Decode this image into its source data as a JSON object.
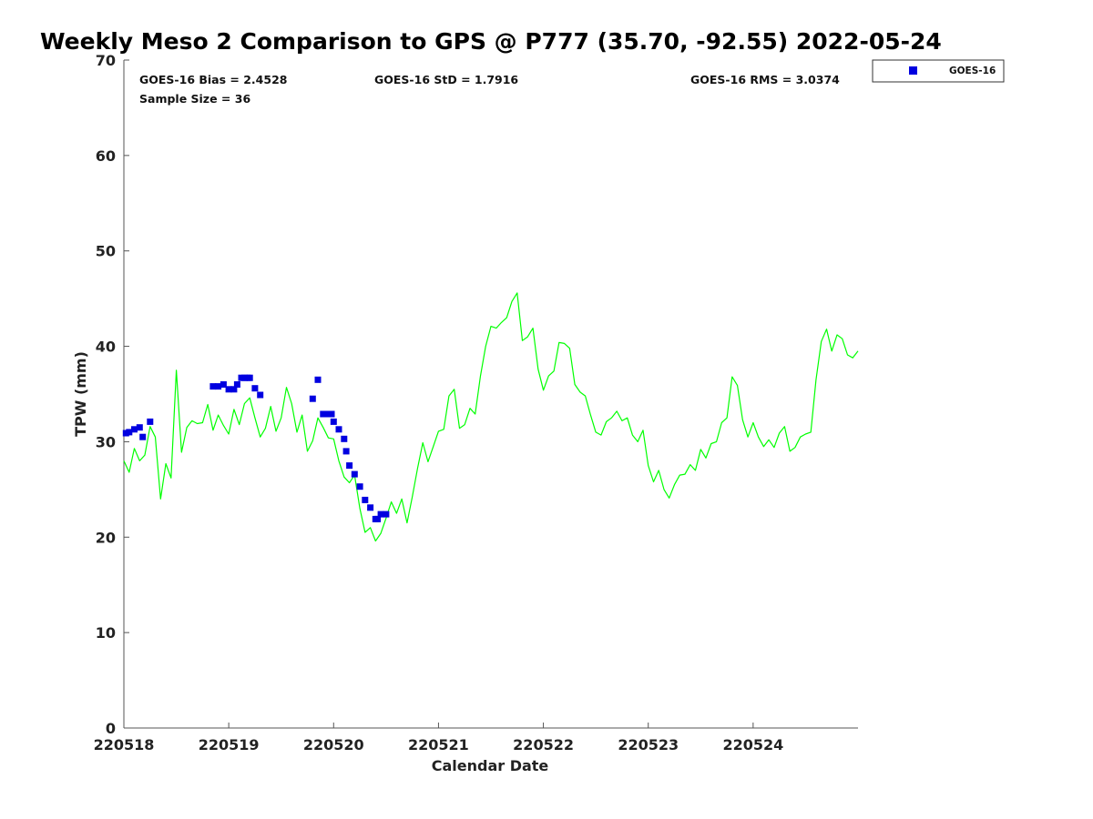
{
  "chart_data": {
    "type": "scatter",
    "title": "Weekly Meso 2 Comparison to GPS @ P777 (35.70, -92.55) 2022-05-24",
    "xlabel": "Calendar Date",
    "ylabel": "TPW (mm)",
    "xlim": [
      220518,
      220525
    ],
    "ylim": [
      0,
      70
    ],
    "x_ticks": [
      220518,
      220519,
      220520,
      220521,
      220522,
      220523,
      220524
    ],
    "x_tick_labels": [
      "220518",
      "220519",
      "220520",
      "220521",
      "220522",
      "220523",
      "220524"
    ],
    "y_ticks": [
      0,
      10,
      20,
      30,
      40,
      50,
      60,
      70
    ],
    "y_tick_labels": [
      "0",
      "10",
      "20",
      "30",
      "40",
      "50",
      "60",
      "70"
    ],
    "grid": false,
    "legend_position": "top-right",
    "stats": {
      "bias": "GOES-16 Bias = 2.4528",
      "std": "GOES-16 StD = 1.7916",
      "rms": "GOES-16 RMS = 3.0374",
      "sample": "Sample Size = 36"
    },
    "series": [
      {
        "name": "GOES-16",
        "kind": "scatter",
        "color": "#0000e0",
        "x": [
          220518.02,
          220518.05,
          220518.1,
          220518.15,
          220518.18,
          220518.25,
          220518.85,
          220518.9,
          220518.95,
          220519.0,
          220519.05,
          220519.08,
          220519.12,
          220519.15,
          220519.18,
          220519.2,
          220519.25,
          220519.3,
          220519.8,
          220519.85,
          220519.9,
          220519.95,
          220519.98,
          220520.0,
          220520.05,
          220520.1,
          220520.12,
          220520.15,
          220520.2,
          220520.25,
          220520.3,
          220520.35,
          220520.4,
          220520.42,
          220520.45,
          220520.5
        ],
        "y": [
          30.9,
          31.0,
          31.3,
          31.5,
          30.5,
          32.1,
          35.8,
          35.8,
          36.0,
          35.5,
          35.5,
          36.0,
          36.7,
          36.7,
          36.7,
          36.7,
          35.6,
          34.9,
          34.5,
          36.5,
          32.9,
          32.9,
          32.9,
          32.1,
          31.3,
          30.3,
          29.0,
          27.5,
          26.6,
          25.3,
          23.9,
          23.1,
          21.9,
          21.9,
          22.4,
          22.4
        ]
      },
      {
        "kind": "line",
        "color": "#00ff00",
        "x": [
          220518.0,
          220518.05,
          220518.1,
          220518.15,
          220518.2,
          220518.25,
          220518.3,
          220518.35,
          220518.4,
          220518.45,
          220518.5,
          220518.55,
          220518.6,
          220518.65,
          220518.7,
          220518.75,
          220518.8,
          220518.85,
          220518.9,
          220518.95,
          220519.0,
          220519.05,
          220519.1,
          220519.15,
          220519.2,
          220519.25,
          220519.3,
          220519.35,
          220519.4,
          220519.45,
          220519.5,
          220519.55,
          220519.6,
          220519.65,
          220519.7,
          220519.75,
          220519.8,
          220519.85,
          220519.9,
          220519.95,
          220520.0,
          220520.05,
          220520.1,
          220520.15,
          220520.2,
          220520.25,
          220520.3,
          220520.35,
          220520.4,
          220520.45,
          220520.5,
          220520.55,
          220520.6,
          220520.65,
          220520.7,
          220520.75,
          220520.8,
          220520.85,
          220520.9,
          220520.95,
          220521.0,
          220521.05,
          220521.1,
          220521.15,
          220521.2,
          220521.25,
          220521.3,
          220521.35,
          220521.4,
          220521.45,
          220521.5,
          220521.55,
          220521.6,
          220521.65,
          220521.7,
          220521.75,
          220521.8,
          220521.85,
          220521.9,
          220521.95,
          220522.0,
          220522.05,
          220522.1,
          220522.15,
          220522.2,
          220522.25,
          220522.3,
          220522.35,
          220522.4,
          220522.45,
          220522.5,
          220522.55,
          220522.6,
          220522.65,
          220522.7,
          220522.75,
          220522.8,
          220522.85,
          220522.9,
          220522.95,
          220523.0,
          220523.05,
          220523.1,
          220523.15,
          220523.2,
          220523.25,
          220523.3,
          220523.35,
          220523.4,
          220523.45,
          220523.5,
          220523.55,
          220523.6,
          220523.65,
          220523.7,
          220523.75,
          220523.8,
          220523.85,
          220523.9,
          220523.95,
          220524.0,
          220524.05,
          220524.1,
          220524.15,
          220524.2,
          220524.25,
          220524.3,
          220524.35,
          220524.4,
          220524.45,
          220524.5,
          220524.55,
          220524.6,
          220524.65,
          220524.7,
          220524.75,
          220524.8,
          220524.85,
          220524.9,
          220524.95,
          220525.0
        ],
        "y": [
          28.0,
          26.8,
          29.3,
          28.0,
          28.6,
          31.6,
          30.5,
          24.0,
          27.7,
          26.2,
          37.5,
          28.9,
          31.5,
          32.2,
          31.9,
          32.0,
          33.9,
          31.2,
          32.8,
          31.7,
          30.8,
          33.4,
          31.8,
          34.0,
          34.6,
          32.5,
          30.5,
          31.4,
          33.7,
          31.1,
          32.5,
          35.7,
          34.0,
          31.0,
          32.8,
          29.0,
          30.1,
          32.5,
          31.5,
          30.4,
          30.3,
          28.0,
          26.3,
          25.7,
          26.5,
          23.0,
          20.5,
          21.0,
          19.6,
          20.4,
          22.0,
          23.7,
          22.5,
          24.0,
          21.5,
          24.2,
          27.2,
          29.9,
          27.9,
          29.5,
          31.1,
          31.3,
          34.8,
          35.5,
          31.4,
          31.8,
          33.5,
          32.9,
          36.9,
          40.0,
          42.1,
          41.9,
          42.5,
          43.0,
          44.7,
          45.6,
          40.6,
          41.0,
          41.9,
          37.6,
          35.4,
          36.9,
          37.4,
          40.4,
          40.3,
          39.8,
          36.0,
          35.2,
          34.8,
          32.8,
          31.0,
          30.7,
          32.1,
          32.5,
          33.2,
          32.2,
          32.5,
          30.7,
          30.0,
          31.2,
          27.5,
          25.8,
          27.0,
          25.0,
          24.1,
          25.5,
          26.5,
          26.6,
          27.6,
          27.0,
          29.2,
          28.3,
          29.8,
          30.0,
          32.0,
          32.5,
          36.8,
          35.9,
          32.3,
          30.5,
          32.0,
          30.5,
          29.5,
          30.2,
          29.4,
          30.9,
          31.6,
          29.0,
          29.4,
          30.5,
          30.8,
          31.0,
          36.5,
          40.5,
          41.8,
          39.5,
          41.2,
          40.8,
          39.1,
          38.8,
          39.5
        ]
      }
    ]
  }
}
